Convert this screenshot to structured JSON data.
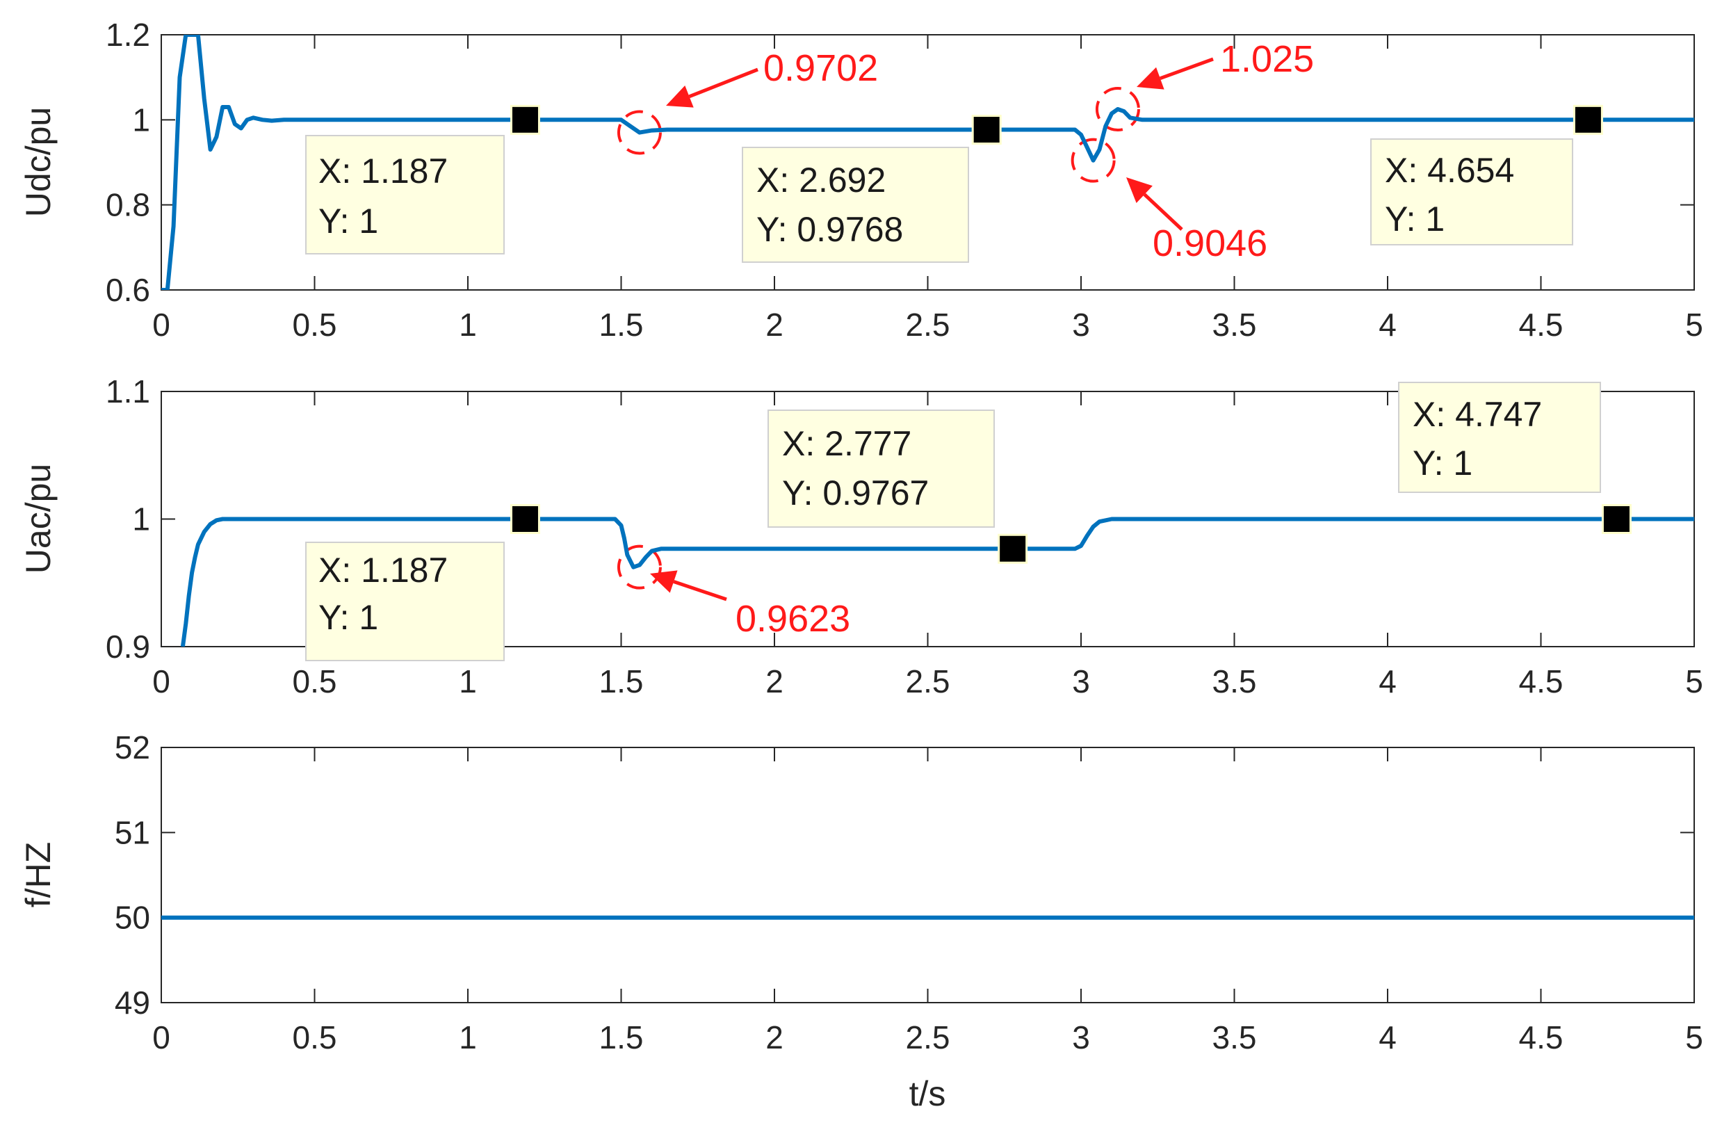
{
  "chart_data": [
    {
      "type": "line",
      "ylabel": "Udc/pu",
      "xlabel": "",
      "xlim": [
        0,
        5
      ],
      "ylim": [
        0.6,
        1.2
      ],
      "xticks": [
        "0",
        "0.5",
        "1",
        "1.5",
        "2",
        "2.5",
        "3",
        "3.5",
        "4",
        "4.5",
        "5"
      ],
      "yticks": [
        "0.6",
        "0.8",
        "1",
        "1.2"
      ],
      "ytick_values": [
        0.6,
        0.8,
        1.0,
        1.2
      ],
      "grid": false,
      "line_color": "#0072bd",
      "series": [
        {
          "x": [
            0,
            0.02,
            0.04,
            0.06,
            0.08,
            0.1,
            0.12,
            0.14,
            0.16,
            0.18,
            0.2,
            0.22,
            0.24,
            0.26,
            0.28,
            0.3,
            0.33,
            0.36,
            0.4,
            0.5,
            1.0,
            1.45,
            1.5,
            1.53,
            1.56,
            1.6,
            1.65,
            1.7,
            2.0,
            2.5,
            2.9,
            2.98,
            3.0,
            3.02,
            3.04,
            3.06,
            3.08,
            3.1,
            3.12,
            3.14,
            3.16,
            3.2,
            3.3,
            3.5,
            4.0,
            4.5,
            5.0
          ],
          "y": [
            0.6,
            0.6,
            0.75,
            1.1,
            1.2,
            1.2,
            1.2,
            1.05,
            0.93,
            0.96,
            1.03,
            1.03,
            0.99,
            0.98,
            1.0,
            1.005,
            1.0,
            0.998,
            1.0,
            1.0,
            1.0,
            1.0,
            1.0,
            0.985,
            0.9702,
            0.975,
            0.9768,
            0.9768,
            0.9768,
            0.9768,
            0.9768,
            0.9768,
            0.965,
            0.935,
            0.9046,
            0.93,
            0.985,
            1.015,
            1.025,
            1.02,
            1.005,
            1.0,
            1.0,
            1.0,
            1.0,
            1.0,
            1.0
          ]
        }
      ],
      "datatips": [
        {
          "x": 1.187,
          "y": 1,
          "x_label": "X: 1.187",
          "y_label": "Y: 1"
        },
        {
          "x": 2.692,
          "y": 0.9768,
          "x_label": "X: 2.692",
          "y_label": "Y: 0.9768"
        },
        {
          "x": 4.654,
          "y": 1,
          "x_label": "X: 4.654",
          "y_label": "Y: 1"
        }
      ],
      "annotations": [
        {
          "text": "0.9702",
          "x": 1.56,
          "y": 0.9702
        },
        {
          "text": "1.025",
          "x": 3.12,
          "y": 1.025
        },
        {
          "text": "0.9046",
          "x": 3.04,
          "y": 0.9046
        }
      ]
    },
    {
      "type": "line",
      "ylabel": "Uac/pu",
      "xlabel": "",
      "xlim": [
        0,
        5
      ],
      "ylim": [
        0.9,
        1.1
      ],
      "xticks": [
        "0",
        "0.5",
        "1",
        "1.5",
        "2",
        "2.5",
        "3",
        "3.5",
        "4",
        "4.5",
        "5"
      ],
      "yticks": [
        "0.9",
        "1",
        "1.1"
      ],
      "ytick_values": [
        0.9,
        1.0,
        1.1
      ],
      "grid": false,
      "line_color": "#0072bd",
      "series": [
        {
          "x": [
            0.07,
            0.08,
            0.09,
            0.1,
            0.11,
            0.12,
            0.14,
            0.16,
            0.18,
            0.2,
            0.25,
            0.5,
            1.0,
            1.48,
            1.5,
            1.51,
            1.52,
            1.54,
            1.56,
            1.58,
            1.6,
            1.63,
            1.7,
            2.0,
            2.5,
            2.9,
            2.98,
            3.0,
            3.02,
            3.04,
            3.06,
            3.1,
            3.2,
            4.0,
            4.5,
            5.0
          ],
          "y": [
            0.9,
            0.918,
            0.94,
            0.958,
            0.97,
            0.98,
            0.99,
            0.996,
            0.999,
            1.0,
            1.0,
            1.0,
            1.0,
            1.0,
            0.995,
            0.985,
            0.972,
            0.9623,
            0.964,
            0.97,
            0.975,
            0.9767,
            0.9767,
            0.9767,
            0.9767,
            0.9767,
            0.9767,
            0.979,
            0.987,
            0.994,
            0.998,
            1.0,
            1.0,
            1.0,
            1.0,
            1.0
          ]
        }
      ],
      "datatips": [
        {
          "x": 1.187,
          "y": 1,
          "x_label": "X: 1.187",
          "y_label": "Y: 1"
        },
        {
          "x": 2.777,
          "y": 0.9767,
          "x_label": "X: 2.777",
          "y_label": "Y: 0.9767"
        },
        {
          "x": 4.747,
          "y": 1,
          "x_label": "X: 4.747",
          "y_label": "Y: 1"
        }
      ],
      "annotations": [
        {
          "text": "0.9623",
          "x": 1.56,
          "y": 0.9623
        }
      ]
    },
    {
      "type": "line",
      "ylabel": "f/HZ",
      "xlabel": "t/s",
      "xlim": [
        0,
        5
      ],
      "ylim": [
        49,
        52
      ],
      "xticks": [
        "0",
        "0.5",
        "1",
        "1.5",
        "2",
        "2.5",
        "3",
        "3.5",
        "4",
        "4.5",
        "5"
      ],
      "yticks": [
        "49",
        "50",
        "51",
        "52"
      ],
      "ytick_values": [
        49,
        50,
        51,
        52
      ],
      "grid": false,
      "line_color": "#0072bd",
      "series": [
        {
          "x": [
            0,
            5
          ],
          "y": [
            50,
            50
          ]
        }
      ],
      "datatips": [],
      "annotations": []
    }
  ]
}
